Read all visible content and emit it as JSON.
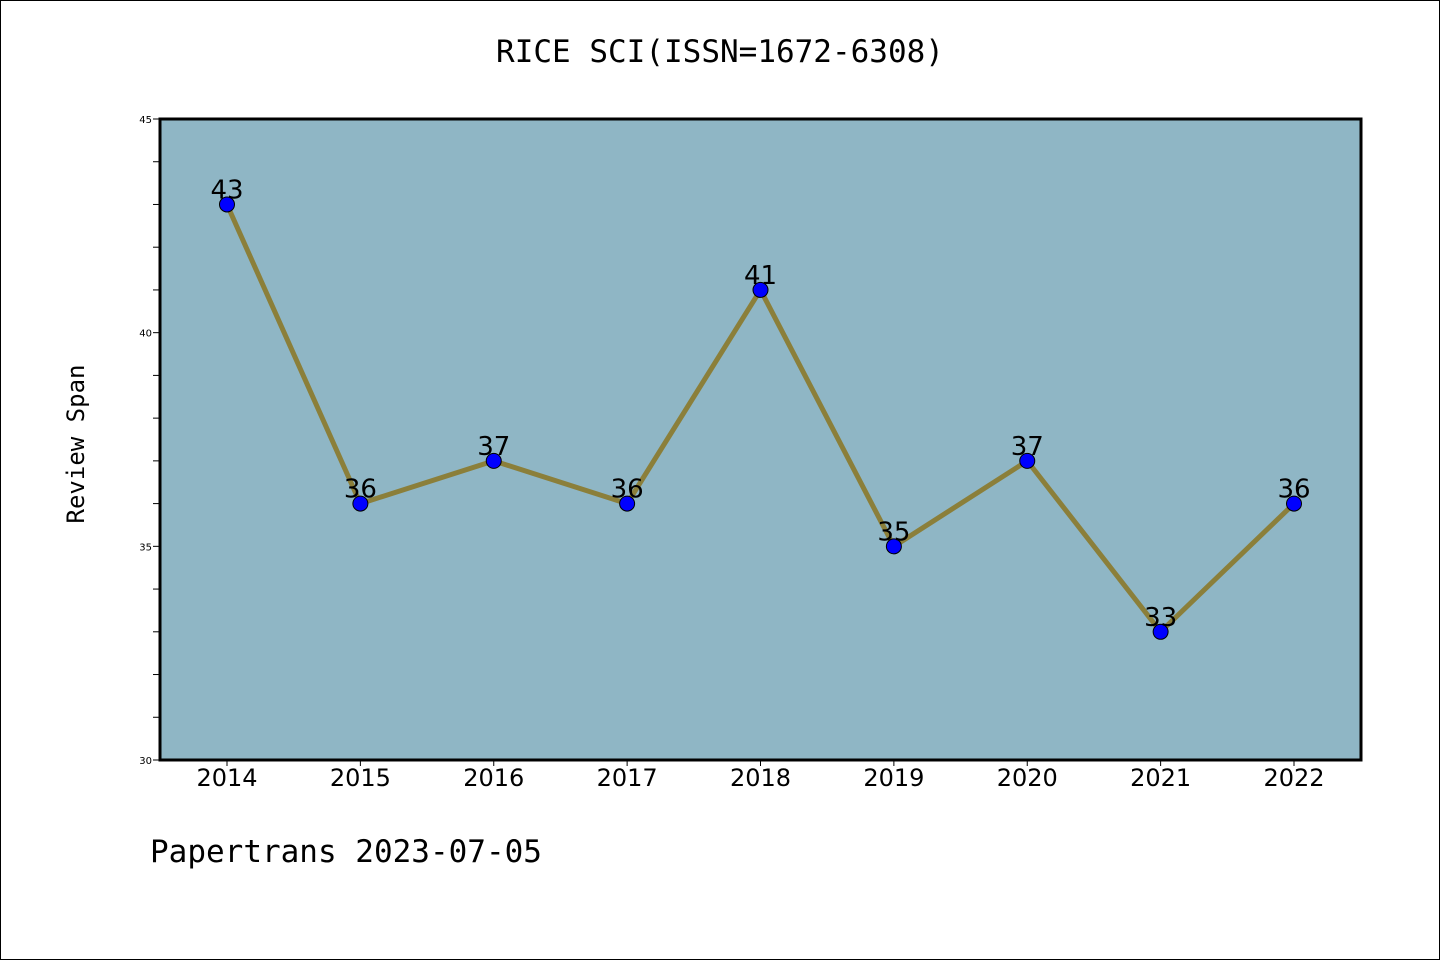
{
  "footer": {
    "text": "Papertrans 2023-07-05"
  },
  "colors": {
    "plot_background": "#8fb6c5",
    "line": "#8b7f3a",
    "marker": "#0000ff",
    "frame": "#000000"
  },
  "chart_data": {
    "type": "line",
    "title": "RICE SCI(ISSN=1672-6308)",
    "xlabel": "",
    "ylabel": "Review Span",
    "categories": [
      "2014",
      "2015",
      "2016",
      "2017",
      "2018",
      "2019",
      "2020",
      "2021",
      "2022"
    ],
    "series": [
      {
        "values": [
          43,
          36,
          37,
          36,
          41,
          35,
          37,
          33,
          36
        ]
      }
    ],
    "ylim": [
      30,
      45
    ],
    "yticks": [
      30,
      35,
      40,
      45
    ],
    "grid": false,
    "data_labels": true
  }
}
